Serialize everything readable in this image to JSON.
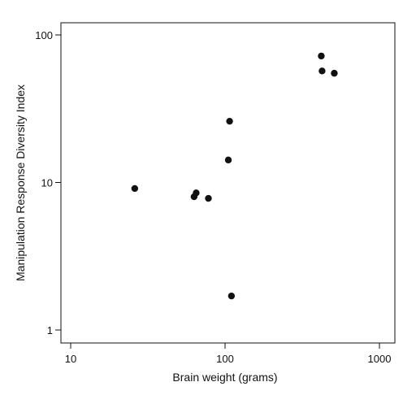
{
  "chart_data": {
    "type": "scatter",
    "title": "",
    "xlabel": "Brain weight (grams)",
    "ylabel": "Manipulation Response Diversity Index",
    "xscale": "log",
    "yscale": "log",
    "xlim": [
      10,
      1000
    ],
    "ylim": [
      1,
      100
    ],
    "grid": false,
    "x_ticks": [
      10,
      100,
      1000
    ],
    "x_tick_labels": [
      "10",
      "100",
      "1000"
    ],
    "y_ticks": [
      1,
      10,
      100
    ],
    "y_tick_labels": [
      "1",
      "10",
      "100"
    ],
    "point_color": "#111111",
    "points": [
      {
        "x": 26,
        "y": 9.1
      },
      {
        "x": 63,
        "y": 8.0
      },
      {
        "x": 65,
        "y": 8.5
      },
      {
        "x": 78,
        "y": 7.8
      },
      {
        "x": 105,
        "y": 14.2
      },
      {
        "x": 107,
        "y": 26
      },
      {
        "x": 110,
        "y": 1.7
      },
      {
        "x": 420,
        "y": 72
      },
      {
        "x": 425,
        "y": 57
      },
      {
        "x": 510,
        "y": 55
      }
    ]
  }
}
